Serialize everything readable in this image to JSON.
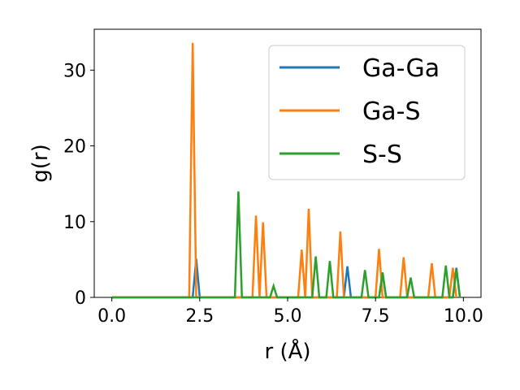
{
  "chart_data": {
    "type": "line",
    "title": "",
    "xlabel": "r (Å)",
    "ylabel": "g(r)",
    "xlim": [
      -0.5,
      10.5
    ],
    "ylim": [
      0,
      35.4
    ],
    "x_ticks": [
      0.0,
      2.5,
      5.0,
      7.5,
      10.0
    ],
    "x_tick_labels": [
      "0.0",
      "2.5",
      "5.0",
      "7.5",
      "10.0"
    ],
    "y_ticks": [
      0,
      10,
      20,
      30
    ],
    "y_tick_labels": [
      "0",
      "10",
      "20",
      "30"
    ],
    "grid": false,
    "legend_position": "top-right",
    "series": [
      {
        "name": "Ga-Ga",
        "color": "#1f77b4",
        "points": [
          [
            0.0,
            0
          ],
          [
            2.3,
            0
          ],
          [
            2.4,
            5.1
          ],
          [
            2.5,
            0
          ],
          [
            6.6,
            0
          ],
          [
            6.7,
            4.1
          ],
          [
            6.8,
            0
          ],
          [
            7.6,
            0
          ],
          [
            7.7,
            3.3
          ],
          [
            7.8,
            0
          ],
          [
            9.7,
            0
          ],
          [
            9.8,
            3.9
          ],
          [
            9.9,
            0
          ]
        ]
      },
      {
        "name": "Ga-S",
        "color": "#ff7f0e",
        "points": [
          [
            0.0,
            0
          ],
          [
            2.2,
            0
          ],
          [
            2.3,
            33.6
          ],
          [
            2.4,
            0
          ],
          [
            4.0,
            0
          ],
          [
            4.1,
            10.8
          ],
          [
            4.2,
            0
          ],
          [
            4.3,
            9.9
          ],
          [
            4.4,
            0
          ],
          [
            5.3,
            0
          ],
          [
            5.4,
            6.3
          ],
          [
            5.5,
            0
          ],
          [
            5.6,
            11.7
          ],
          [
            5.7,
            0
          ],
          [
            6.4,
            0
          ],
          [
            6.5,
            8.7
          ],
          [
            6.6,
            0
          ],
          [
            7.5,
            0
          ],
          [
            7.6,
            6.4
          ],
          [
            7.7,
            0
          ],
          [
            8.2,
            0
          ],
          [
            8.3,
            5.3
          ],
          [
            8.4,
            0
          ],
          [
            9.0,
            0
          ],
          [
            9.1,
            4.5
          ],
          [
            9.2,
            0
          ],
          [
            9.6,
            0
          ],
          [
            9.7,
            3.9
          ],
          [
            9.8,
            0
          ]
        ]
      },
      {
        "name": "S-S",
        "color": "#2ca02c",
        "points": [
          [
            0.0,
            0
          ],
          [
            3.5,
            0
          ],
          [
            3.6,
            14.0
          ],
          [
            3.7,
            0
          ],
          [
            4.5,
            0
          ],
          [
            4.6,
            1.5
          ],
          [
            4.7,
            0
          ],
          [
            5.7,
            0
          ],
          [
            5.8,
            5.4
          ],
          [
            5.9,
            0
          ],
          [
            6.1,
            0
          ],
          [
            6.2,
            4.8
          ],
          [
            6.3,
            0
          ],
          [
            7.1,
            0
          ],
          [
            7.2,
            3.6
          ],
          [
            7.3,
            0
          ],
          [
            7.6,
            0
          ],
          [
            7.7,
            3.2
          ],
          [
            7.8,
            0
          ],
          [
            8.4,
            0
          ],
          [
            8.5,
            2.6
          ],
          [
            8.6,
            0
          ],
          [
            9.4,
            0
          ],
          [
            9.5,
            4.2
          ],
          [
            9.6,
            0
          ],
          [
            9.7,
            0
          ],
          [
            9.8,
            3.7
          ],
          [
            9.9,
            0
          ]
        ]
      }
    ]
  }
}
